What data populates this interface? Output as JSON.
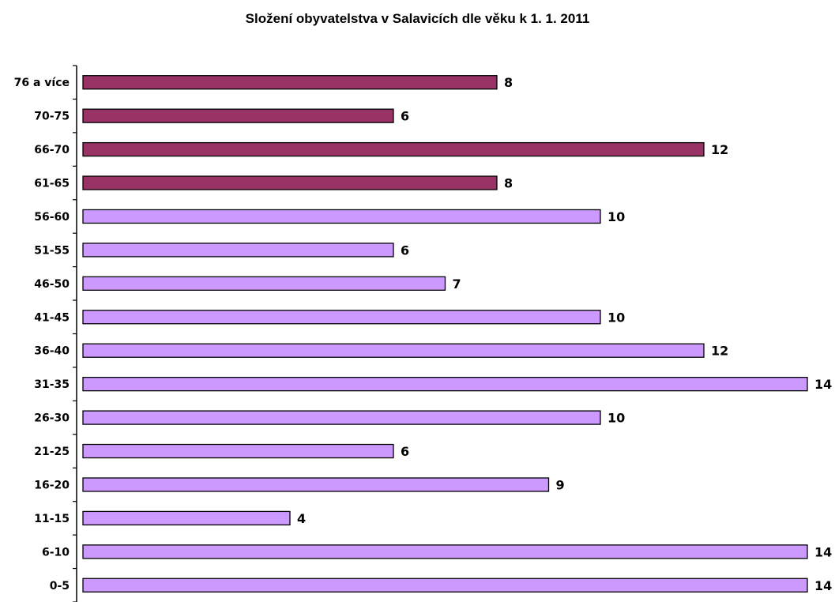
{
  "chart_data": {
    "type": "bar",
    "orientation": "horizontal",
    "title": "Složení obyvatelstva v Salavicích dle věku k 1. 1. 2011",
    "xlabel": "",
    "ylabel": "",
    "xlim": [
      0,
      14
    ],
    "grid": false,
    "legend": "none",
    "categories": [
      "76 a více",
      "70-75",
      "66-70",
      "61-65",
      "56-60",
      "51-55",
      "46-50",
      "41-45",
      "36-40",
      "31-35",
      "26-30",
      "21-25",
      "16-20",
      "11-15",
      "6-10",
      "0-5"
    ],
    "values": [
      8,
      6,
      12,
      8,
      10,
      6,
      7,
      10,
      12,
      14,
      10,
      6,
      9,
      4,
      14,
      14
    ],
    "value_labels": [
      "8",
      "6",
      "12",
      "8",
      "10",
      "6",
      "7",
      "10",
      "12",
      "14",
      "10",
      "6",
      "9",
      "4",
      "14",
      "14"
    ],
    "colors": {
      "older_groups": "#993366",
      "younger_groups": "#CC99FF",
      "bar_border": "#000000"
    },
    "bar_color_groups": [
      "older_groups",
      "older_groups",
      "older_groups",
      "older_groups",
      "younger_groups",
      "younger_groups",
      "younger_groups",
      "younger_groups",
      "younger_groups",
      "younger_groups",
      "younger_groups",
      "younger_groups",
      "younger_groups",
      "younger_groups",
      "younger_groups",
      "younger_groups"
    ]
  }
}
